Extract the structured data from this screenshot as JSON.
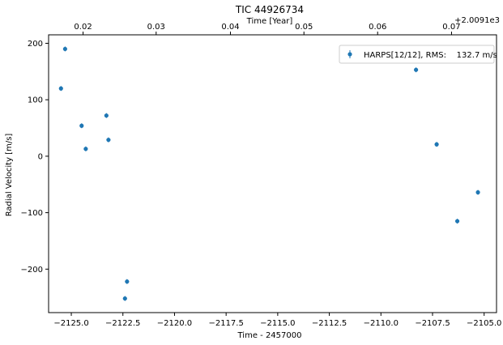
{
  "chart_data": {
    "type": "scatter",
    "title": "TIC 44926734",
    "xlabel": "Time - 2457000",
    "ylabel": "Radial Velocity [m/s]",
    "x2label": "Time [Year]",
    "x2_offset_label": "+2.0091e3",
    "xlim": [
      -2126.1,
      -2104.4
    ],
    "ylim": [
      -277,
      215
    ],
    "x_ticks": [
      {
        "value": -2125.0,
        "label": "−2125.0"
      },
      {
        "value": -2122.5,
        "label": "−2122.5"
      },
      {
        "value": -2120.0,
        "label": "−2120.0"
      },
      {
        "value": -2117.5,
        "label": "−2117.5"
      },
      {
        "value": -2115.0,
        "label": "−2115.0"
      },
      {
        "value": -2112.5,
        "label": "−2112.5"
      },
      {
        "value": -2110.0,
        "label": "−2110.0"
      },
      {
        "value": -2107.5,
        "label": "−2107.5"
      },
      {
        "value": -2105.0,
        "label": "−2105.0"
      }
    ],
    "y_ticks": [
      {
        "value": 200,
        "label": "200"
      },
      {
        "value": 100,
        "label": "100"
      },
      {
        "value": 0,
        "label": "0"
      },
      {
        "value": -100,
        "label": "−100"
      },
      {
        "value": -200,
        "label": "−200"
      }
    ],
    "x2_ticks": [
      {
        "value": -2124.43,
        "label": "0.02"
      },
      {
        "value": -2120.89,
        "label": "0.03"
      },
      {
        "value": -2117.29,
        "label": "0.04"
      },
      {
        "value": -2113.73,
        "label": "0.05"
      },
      {
        "value": -2110.16,
        "label": "0.06"
      },
      {
        "value": -2106.58,
        "label": "0.07"
      }
    ],
    "series": [
      {
        "name": "HARPS[12/12], RMS:    132.7 m/s",
        "color": "#1f77b4",
        "points": [
          {
            "x": -2125.5,
            "y": 120
          },
          {
            "x": -2125.3,
            "y": 190
          },
          {
            "x": -2124.5,
            "y": 54
          },
          {
            "x": -2124.3,
            "y": 13
          },
          {
            "x": -2123.3,
            "y": 72
          },
          {
            "x": -2123.2,
            "y": 29
          },
          {
            "x": -2122.4,
            "y": -252
          },
          {
            "x": -2122.3,
            "y": -222
          },
          {
            "x": -2108.3,
            "y": 153
          },
          {
            "x": -2107.3,
            "y": 21
          },
          {
            "x": -2106.3,
            "y": -115
          },
          {
            "x": -2105.3,
            "y": -64
          }
        ]
      }
    ],
    "grid": false,
    "legend": "top-right"
  }
}
